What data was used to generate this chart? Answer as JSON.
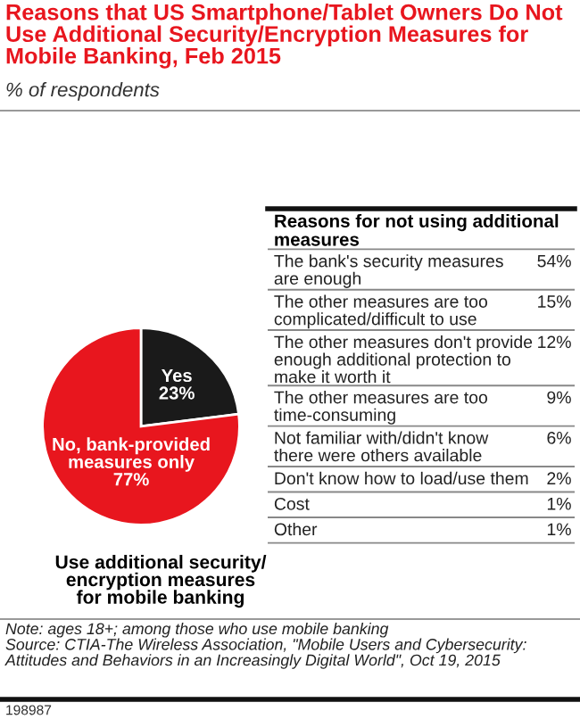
{
  "chart_data": [
    {
      "type": "pie",
      "title": "Reasons that US Smartphone/Tablet Owners Do Not\nUse Additional Security/Encryption Measures for\nMobile Banking, Feb 2015",
      "subtitle": "% of respondents",
      "xlabel": "Use additional security/\nencryption measures\nfor mobile banking",
      "categories": [
        "Yes",
        "No, bank-provided\nmeasures only"
      ],
      "values": [
        23,
        77
      ],
      "value_labels": [
        "23%",
        "77%"
      ],
      "colors": [
        "#1a1a1a",
        "#e8161e"
      ],
      "annotations": [
        "Note: ages 18+; among those who use mobile banking\nSource: CTIA-The Wireless Association, \"Mobile Users and Cybersecurity:\nAttitudes and Behaviors in an Increasingly Digital World\", Oct 19, 2015",
        "198987"
      ]
    },
    {
      "type": "other",
      "title": "Reasons for not using additional\nmeasures",
      "categories": [
        "The bank's security measures\nare enough",
        "The other measures are too\ncomplicated/difficult to use",
        "The other measures don't provide\nenough additional protection to\nmake it worth it",
        "The other measures are too\ntime-consuming",
        "Not familiar with/didn't know\nthere were others available",
        "Don't know how to load/use them",
        "Cost",
        "Other"
      ],
      "values": [
        54,
        15,
        12,
        9,
        6,
        2,
        1,
        1
      ],
      "value_labels": [
        "54%",
        "15%",
        "12%",
        "9%",
        "6%",
        "2%",
        "1%",
        "1%"
      ]
    }
  ]
}
